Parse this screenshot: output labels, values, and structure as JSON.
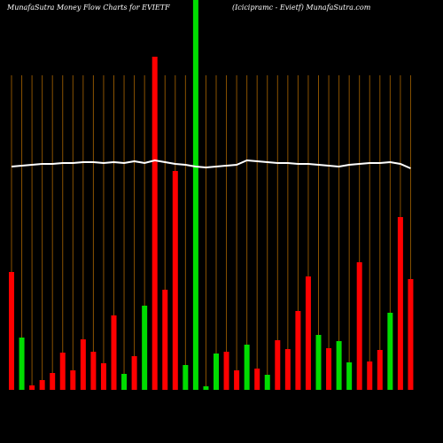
{
  "chart_data": {
    "type": "bar",
    "title": "MunafaSutra  Money Flow  Charts for EVIETF",
    "subtitle": "(Icicipramc -  Evietf) MunafaSutra.com",
    "categories": [
      null,
      null,
      null,
      null,
      null,
      null,
      null,
      null,
      null,
      null,
      null,
      null,
      null,
      null,
      null,
      null,
      null,
      null,
      null,
      null,
      null,
      null,
      null,
      null,
      null,
      null,
      null,
      null,
      null,
      null,
      null,
      null,
      null,
      null,
      null,
      null,
      null,
      null,
      null,
      null
    ],
    "values": [
      133,
      59,
      5,
      11,
      19,
      42,
      22,
      57,
      43,
      30,
      84,
      18,
      38,
      95,
      376,
      113,
      247,
      28,
      445,
      4,
      41,
      43,
      22,
      51,
      24,
      17,
      56,
      46,
      89,
      128,
      62,
      47,
      55,
      31,
      144,
      32,
      45,
      87,
      195,
      125
    ],
    "bar_colors": [
      "#ff0000",
      "#00dd00",
      "#ff0000",
      "#ff0000",
      "#ff0000",
      "#ff0000",
      "#ff0000",
      "#ff0000",
      "#ff0000",
      "#ff0000",
      "#ff0000",
      "#00dd00",
      "#ff0000",
      "#00dd00",
      "#ff0000",
      "#ff0000",
      "#ff0000",
      "#00dd00",
      "#00dd00",
      "#00dd00",
      "#00dd00",
      "#ff0000",
      "#ff0000",
      "#00dd00",
      "#ff0000",
      "#00dd00",
      "#ff0000",
      "#ff0000",
      "#ff0000",
      "#ff0000",
      "#00dd00",
      "#ff0000",
      "#00dd00",
      "#00dd00",
      "#ff0000",
      "#ff0000",
      "#ff0000",
      "#00dd00",
      "#ff0000",
      "#ff0000"
    ],
    "line": {
      "color": "#ffffff",
      "values": [
        252,
        253,
        254,
        255,
        255,
        256,
        256,
        257,
        257,
        256,
        257,
        256,
        258,
        256,
        259,
        257,
        255,
        254,
        252,
        251,
        252,
        253,
        254,
        259,
        258,
        257,
        256,
        256,
        255,
        255,
        254,
        253,
        252,
        254,
        255,
        256,
        256,
        257,
        255,
        250
      ]
    },
    "ylim": [
      0,
      440
    ],
    "grid": true,
    "grid_color": "#8a5200"
  }
}
